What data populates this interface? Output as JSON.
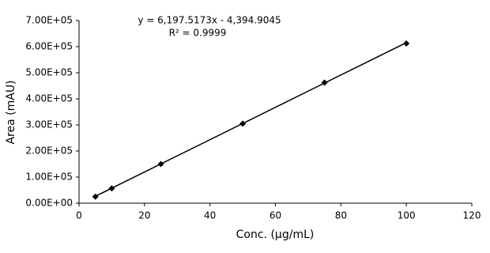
{
  "chart_data": {
    "type": "scatter",
    "x_label": "Conc. (µg/mL)",
    "y_label": "Area (mAU)",
    "x": [
      5,
      10,
      25,
      50,
      75,
      100
    ],
    "series": [
      {
        "color": "#000000",
        "values": [
          25000,
          57000,
          150000,
          305000,
          462000,
          612000
        ]
      }
    ],
    "trendline": {
      "slope": 6197.5173,
      "intercept": -4394.9045,
      "equation": "y = 6,197.5173x - 4,394.9045",
      "r2": "R² = 0.9999"
    },
    "xlim": [
      0,
      120
    ],
    "xticks": [
      0,
      20,
      40,
      60,
      80,
      100,
      120
    ],
    "ylim": [
      0,
      700000
    ],
    "yticks": [
      {
        "value": 0,
        "label": "0.00E+00"
      },
      {
        "value": 100000,
        "label": "1.00E+05"
      },
      {
        "value": 200000,
        "label": "2.00E+05"
      },
      {
        "value": 300000,
        "label": "3.00E+05"
      },
      {
        "value": 400000,
        "label": "4.00E+05"
      },
      {
        "value": 500000,
        "label": "5.00E+05"
      },
      {
        "value": 600000,
        "label": "6.00E+05"
      },
      {
        "value": 700000,
        "label": "7.00E+05"
      }
    ],
    "grid": false
  }
}
